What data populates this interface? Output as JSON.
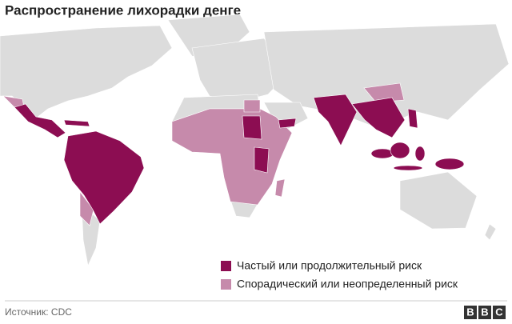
{
  "title": "Распространение лихорадки денге",
  "legend": [
    {
      "label": "Частый или продолжительный риск",
      "color": "#8c0d52"
    },
    {
      "label": "Спорадический или неопределенный риск",
      "color": "#c68aab"
    }
  ],
  "land_color": "#dcdcdc",
  "source": "Источник: CDC",
  "logo": [
    "B",
    "B",
    "C"
  ]
}
